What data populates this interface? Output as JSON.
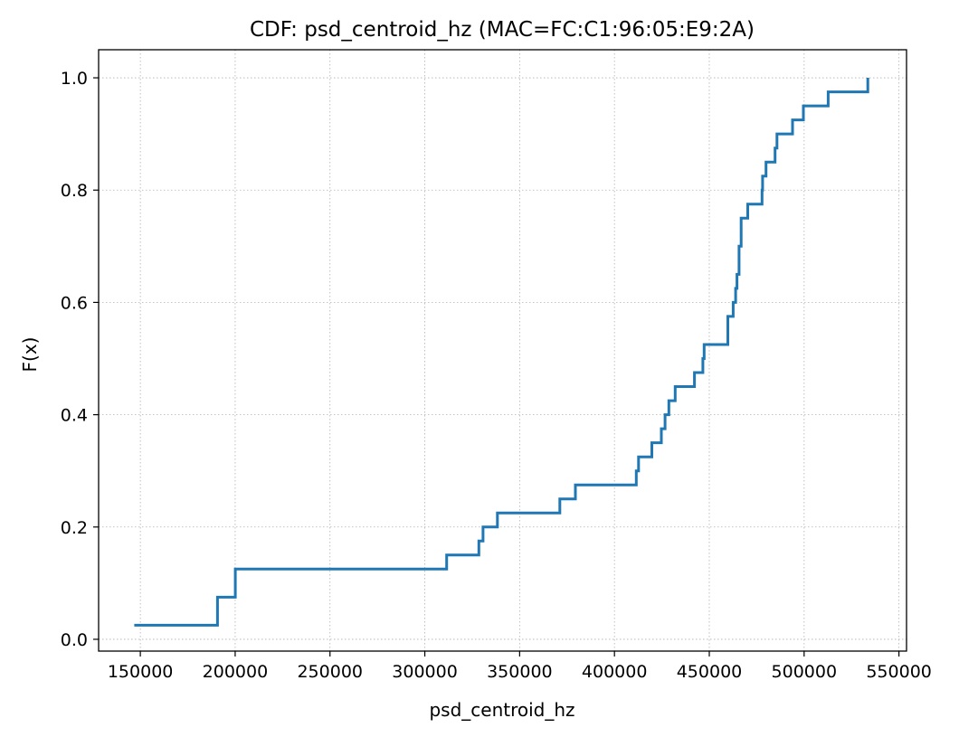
{
  "chart_data": {
    "type": "line",
    "step": true,
    "title": "CDF: psd_centroid_hz (MAC=FC:C1:96:05:E9:2A)",
    "xlabel": "psd_centroid_hz",
    "ylabel": "F(x)",
    "xlim": [
      128000,
      554000
    ],
    "ylim": [
      -0.021,
      1.05
    ],
    "xticks": [
      150000,
      200000,
      250000,
      300000,
      350000,
      400000,
      450000,
      500000,
      550000
    ],
    "xtick_labels": [
      "150000",
      "200000",
      "250000",
      "300000",
      "350000",
      "400000",
      "450000",
      "500000",
      "550000"
    ],
    "yticks": [
      0.0,
      0.2,
      0.4,
      0.6,
      0.8,
      1.0
    ],
    "ytick_labels": [
      "0.0",
      "0.2",
      "0.4",
      "0.6",
      "0.8",
      "1.0"
    ],
    "grid": true,
    "color": "#1f77b4",
    "series": [
      {
        "x": [
          146800,
          190700,
          200100,
          311500,
          328500,
          330700,
          338300,
          371200,
          379400,
          411500,
          412700,
          419700,
          424700,
          426700,
          428700,
          432000,
          442200,
          446600,
          447300,
          459800,
          462600,
          463900,
          464600,
          465700,
          466800,
          470300,
          477800,
          478100,
          479900,
          484700,
          485700,
          489200,
          493900,
          499600,
          512700,
          533600
        ],
        "y": [
          0.025,
          0.075,
          0.125,
          0.15,
          0.175,
          0.2,
          0.225,
          0.25,
          0.275,
          0.3,
          0.325,
          0.35,
          0.375,
          0.4,
          0.425,
          0.45,
          0.475,
          0.5,
          0.525,
          0.575,
          0.6,
          0.625,
          0.65,
          0.7,
          0.75,
          0.775,
          0.8,
          0.825,
          0.85,
          0.875,
          0.9,
          0.9,
          0.925,
          0.95,
          0.975,
          1.0
        ]
      }
    ]
  }
}
